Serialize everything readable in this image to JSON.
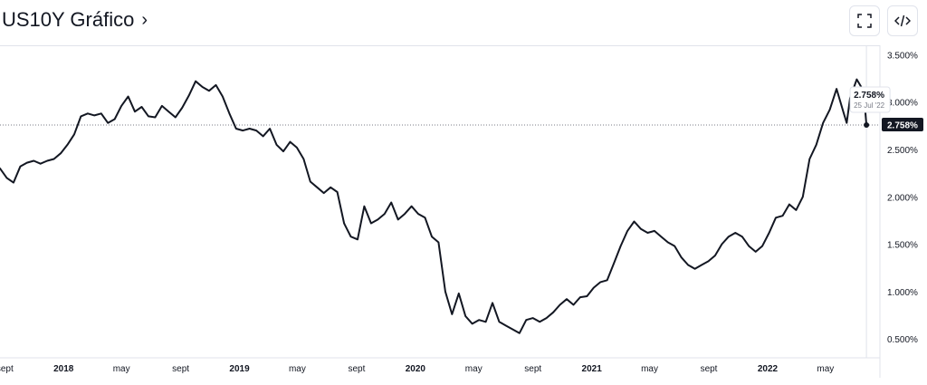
{
  "header": {
    "title": "US10Y Gráfico",
    "title_chevron": "›",
    "fullscreen_icon": "fullscreen-icon",
    "embed_icon": "code-icon"
  },
  "colors": {
    "line": "#131722",
    "grid": "#e0e3eb",
    "axis_text": "#131722",
    "badge_bg": "#131722",
    "badge_text": "#ffffff",
    "tooltip_border": "#e0e3eb"
  },
  "chart_data": {
    "type": "line",
    "title": "",
    "xlabel": "",
    "ylabel": "",
    "ylim": [
      0.3,
      3.6
    ],
    "xlim": [
      "2017-08-22",
      "2022-08-22"
    ],
    "y_ticks": [
      "3.500%",
      "3.000%",
      "2.500%",
      "2.000%",
      "1.500%",
      "1.000%",
      "0.500%"
    ],
    "y_tick_values": [
      3.5,
      3.0,
      2.5,
      2.0,
      1.5,
      1.0,
      0.5
    ],
    "x_ticks": [
      {
        "label": "sept",
        "date": "2017-09-01"
      },
      {
        "label": "2018",
        "date": "2018-01-01"
      },
      {
        "label": "may",
        "date": "2018-05-01"
      },
      {
        "label": "sept",
        "date": "2018-09-01"
      },
      {
        "label": "2019",
        "date": "2019-01-01"
      },
      {
        "label": "may",
        "date": "2019-05-01"
      },
      {
        "label": "sept",
        "date": "2019-09-01"
      },
      {
        "label": "2020",
        "date": "2020-01-01"
      },
      {
        "label": "may",
        "date": "2020-05-01"
      },
      {
        "label": "sept",
        "date": "2020-09-01"
      },
      {
        "label": "2021",
        "date": "2021-01-01"
      },
      {
        "label": "may",
        "date": "2021-05-01"
      },
      {
        "label": "sept",
        "date": "2021-09-01"
      },
      {
        "label": "2022",
        "date": "2022-01-01"
      },
      {
        "label": "may",
        "date": "2022-05-01"
      }
    ],
    "series": [
      {
        "x": [
          "2017-08-22",
          "2017-09-05",
          "2017-09-19",
          "2017-10-03",
          "2017-10-17",
          "2017-10-31",
          "2017-11-14",
          "2017-11-28",
          "2017-12-12",
          "2017-12-26",
          "2018-01-09",
          "2018-01-23",
          "2018-02-06",
          "2018-02-20",
          "2018-03-06",
          "2018-03-20",
          "2018-04-03",
          "2018-04-17",
          "2018-05-01",
          "2018-05-15",
          "2018-05-29",
          "2018-06-12",
          "2018-06-26",
          "2018-07-10",
          "2018-07-24",
          "2018-08-07",
          "2018-08-21",
          "2018-09-04",
          "2018-09-18",
          "2018-10-02",
          "2018-10-16",
          "2018-10-30",
          "2018-11-13",
          "2018-11-27",
          "2018-12-11",
          "2018-12-25",
          "2019-01-08",
          "2019-01-22",
          "2019-02-05",
          "2019-02-19",
          "2019-03-05",
          "2019-03-19",
          "2019-04-02",
          "2019-04-16",
          "2019-04-30",
          "2019-05-14",
          "2019-05-28",
          "2019-06-11",
          "2019-06-25",
          "2019-07-09",
          "2019-07-23",
          "2019-08-06",
          "2019-08-20",
          "2019-09-03",
          "2019-09-17",
          "2019-10-01",
          "2019-10-15",
          "2019-10-29",
          "2019-11-12",
          "2019-11-26",
          "2019-12-10",
          "2019-12-24",
          "2020-01-07",
          "2020-01-21",
          "2020-02-04",
          "2020-02-18",
          "2020-03-03",
          "2020-03-17",
          "2020-03-31",
          "2020-04-14",
          "2020-04-28",
          "2020-05-12",
          "2020-05-26",
          "2020-06-09",
          "2020-06-23",
          "2020-07-07",
          "2020-07-21",
          "2020-08-04",
          "2020-08-18",
          "2020-09-01",
          "2020-09-15",
          "2020-09-29",
          "2020-10-13",
          "2020-10-27",
          "2020-11-10",
          "2020-11-24",
          "2020-12-08",
          "2020-12-22",
          "2021-01-05",
          "2021-01-19",
          "2021-02-02",
          "2021-02-16",
          "2021-03-02",
          "2021-03-16",
          "2021-03-30",
          "2021-04-13",
          "2021-04-27",
          "2021-05-11",
          "2021-05-25",
          "2021-06-08",
          "2021-06-22",
          "2021-07-06",
          "2021-07-20",
          "2021-08-03",
          "2021-08-17",
          "2021-08-31",
          "2021-09-14",
          "2021-09-28",
          "2021-10-12",
          "2021-10-26",
          "2021-11-09",
          "2021-11-23",
          "2021-12-07",
          "2021-12-21",
          "2022-01-04",
          "2022-01-18",
          "2022-02-01",
          "2022-02-15",
          "2022-03-01",
          "2022-03-15",
          "2022-03-29",
          "2022-04-12",
          "2022-04-26",
          "2022-05-10",
          "2022-05-24",
          "2022-06-07",
          "2022-06-14",
          "2022-06-21",
          "2022-07-05",
          "2022-07-19",
          "2022-07-25"
        ],
        "y": [
          2.3,
          2.2,
          2.15,
          2.32,
          2.36,
          2.38,
          2.35,
          2.38,
          2.4,
          2.46,
          2.55,
          2.66,
          2.85,
          2.88,
          2.86,
          2.88,
          2.78,
          2.82,
          2.96,
          3.06,
          2.9,
          2.95,
          2.85,
          2.84,
          2.96,
          2.9,
          2.84,
          2.94,
          3.07,
          3.22,
          3.16,
          3.12,
          3.18,
          3.06,
          2.88,
          2.72,
          2.7,
          2.72,
          2.7,
          2.64,
          2.72,
          2.55,
          2.48,
          2.58,
          2.52,
          2.4,
          2.16,
          2.1,
          2.04,
          2.1,
          2.05,
          1.72,
          1.58,
          1.55,
          1.9,
          1.72,
          1.76,
          1.82,
          1.94,
          1.76,
          1.82,
          1.9,
          1.82,
          1.78,
          1.58,
          1.52,
          1.0,
          0.76,
          0.98,
          0.74,
          0.66,
          0.7,
          0.68,
          0.88,
          0.68,
          0.64,
          0.6,
          0.56,
          0.7,
          0.72,
          0.68,
          0.72,
          0.78,
          0.86,
          0.92,
          0.86,
          0.94,
          0.95,
          1.04,
          1.1,
          1.12,
          1.3,
          1.48,
          1.64,
          1.74,
          1.66,
          1.62,
          1.64,
          1.58,
          1.52,
          1.48,
          1.36,
          1.28,
          1.24,
          1.28,
          1.32,
          1.38,
          1.5,
          1.58,
          1.62,
          1.58,
          1.48,
          1.42,
          1.48,
          1.62,
          1.78,
          1.8,
          1.92,
          1.86,
          2.0,
          2.4,
          2.55,
          2.78,
          2.92,
          3.14,
          2.9,
          2.78,
          3.04,
          3.24,
          3.12,
          2.758
        ]
      }
    ],
    "last_value": {
      "label": "2.758%",
      "value": 2.758,
      "date_label": "25 Jul '22",
      "date": "2022-07-25"
    }
  }
}
